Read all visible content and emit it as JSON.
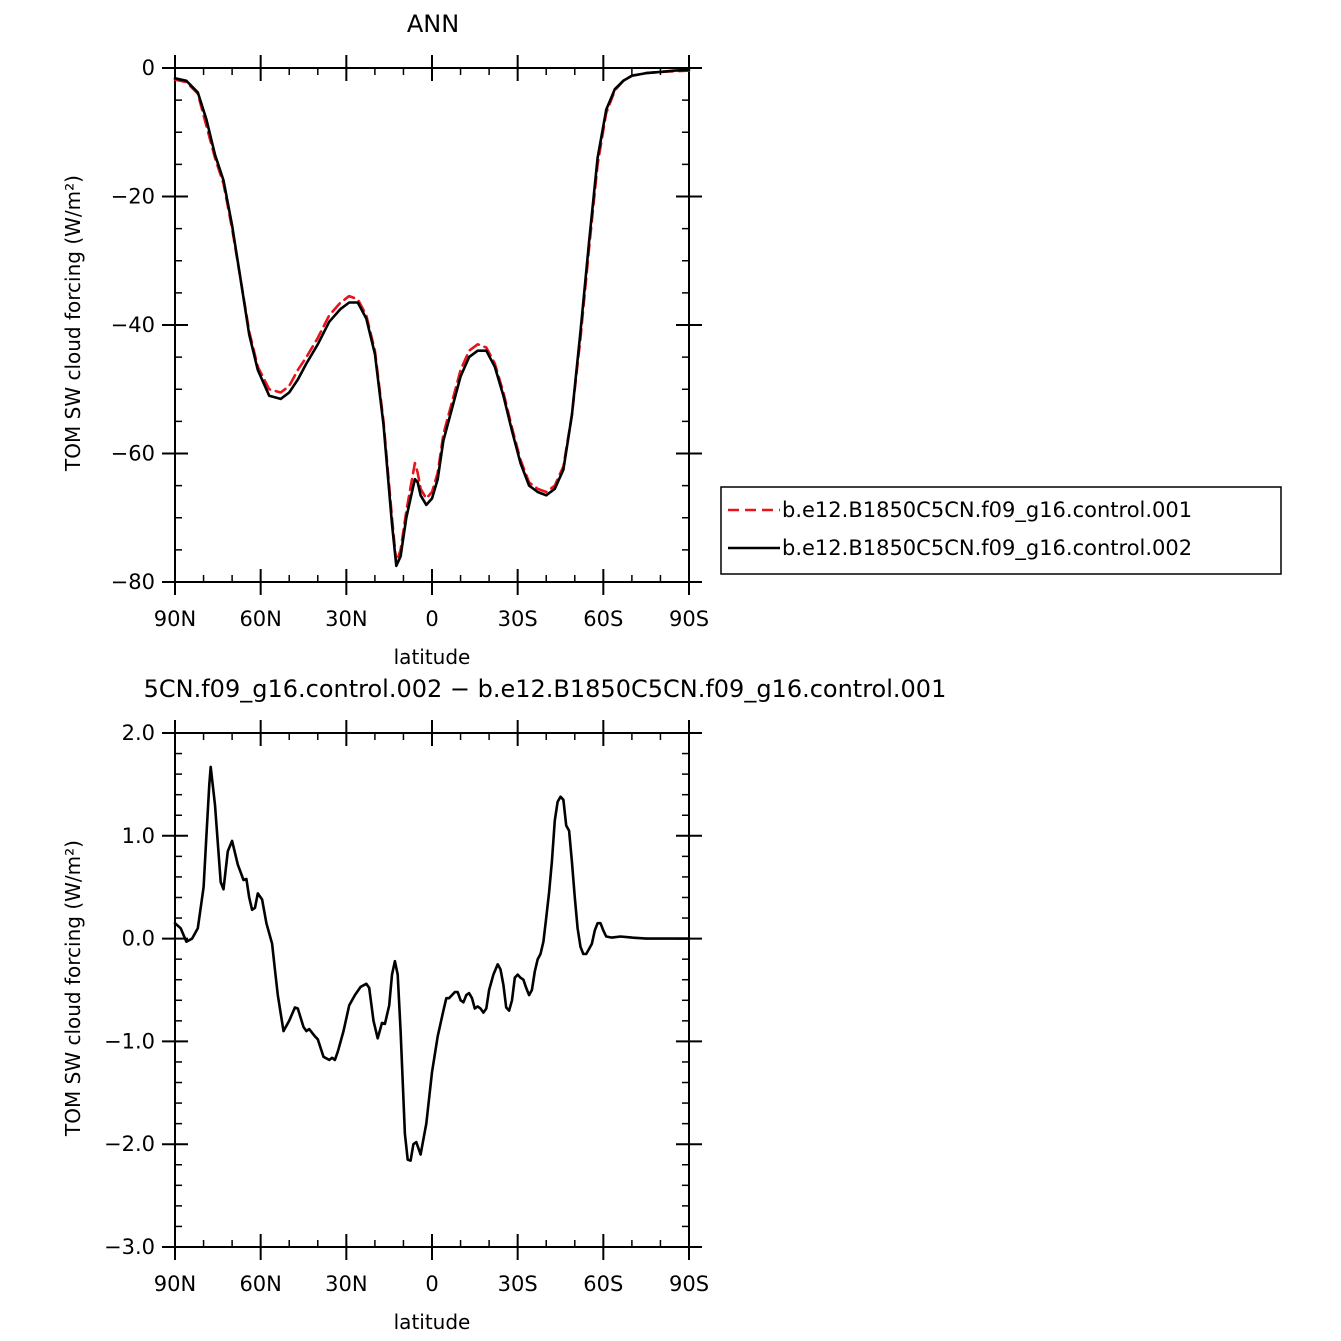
{
  "chart_data": [
    {
      "type": "line",
      "title": "ANN",
      "xlabel": "latitude",
      "ylabel": "TOM SW cloud forcing (W/m²)",
      "xlim": [
        90,
        -90
      ],
      "ylim": [
        -80,
        0
      ],
      "x_tick_values": [
        90,
        60,
        30,
        0,
        -30,
        -60,
        -90
      ],
      "x_ticks": [
        "90N",
        "60N",
        "30N",
        "0",
        "30S",
        "60S",
        "90S"
      ],
      "y_tick_values": [
        0,
        -20,
        -40,
        -60,
        -80
      ],
      "y_ticks": [
        "0",
        "−20",
        "−40",
        "−60",
        "−80"
      ],
      "legend_position": "right",
      "series": [
        {
          "name": "b.e12.B1850C5CN.f09_g16.control.001",
          "color": "#e8141b",
          "dash": "dashed",
          "points": [
            [
              90,
              -1.8
            ],
            [
              86,
              -2.2
            ],
            [
              82,
              -4
            ],
            [
              79,
              -9
            ],
            [
              76,
              -14
            ],
            [
              73,
              -18
            ],
            [
              70,
              -25
            ],
            [
              67,
              -33
            ],
            [
              64,
              -41
            ],
            [
              61,
              -46.5
            ],
            [
              57,
              -50
            ],
            [
              53,
              -50.5
            ],
            [
              50,
              -49.5
            ],
            [
              47,
              -47
            ],
            [
              44,
              -45
            ],
            [
              40,
              -42
            ],
            [
              36,
              -38.5
            ],
            [
              32,
              -36.5
            ],
            [
              29,
              -35.5
            ],
            [
              26,
              -36
            ],
            [
              23,
              -38.5
            ],
            [
              20,
              -44
            ],
            [
              17,
              -55
            ],
            [
              14,
              -70
            ],
            [
              12.5,
              -77
            ],
            [
              11,
              -75
            ],
            [
              9,
              -69
            ],
            [
              7,
              -64
            ],
            [
              6,
              -61.5
            ],
            [
              5,
              -63
            ],
            [
              4,
              -65.5
            ],
            [
              2,
              -67
            ],
            [
              0,
              -66
            ],
            [
              -2,
              -63
            ],
            [
              -4,
              -57
            ],
            [
              -7,
              -52
            ],
            [
              -10,
              -47
            ],
            [
              -13,
              -44
            ],
            [
              -16,
              -43
            ],
            [
              -19,
              -43.5
            ],
            [
              -22,
              -46
            ],
            [
              -25,
              -50.5
            ],
            [
              -28,
              -56
            ],
            [
              -31,
              -61
            ],
            [
              -34,
              -64.5
            ],
            [
              -37,
              -65.5
            ],
            [
              -40,
              -66
            ],
            [
              -43,
              -65
            ],
            [
              -46,
              -62
            ],
            [
              -49,
              -54
            ],
            [
              -52,
              -42
            ],
            [
              -55,
              -28
            ],
            [
              -58,
              -15
            ],
            [
              -61,
              -7
            ],
            [
              -64,
              -3.5
            ],
            [
              -67,
              -2
            ],
            [
              -70,
              -1.2
            ],
            [
              -75,
              -0.8
            ],
            [
              -80,
              -0.6
            ],
            [
              -85,
              -0.5
            ],
            [
              -90,
              -0.4
            ]
          ]
        },
        {
          "name": "b.e12.B1850C5CN.f09_g16.control.002",
          "color": "#000000",
          "dash": "solid",
          "points": [
            [
              90,
              -1.6
            ],
            [
              86,
              -2
            ],
            [
              82,
              -3.8
            ],
            [
              79,
              -8
            ],
            [
              76,
              -13.5
            ],
            [
              73,
              -17.5
            ],
            [
              70,
              -24.5
            ],
            [
              67,
              -33
            ],
            [
              64,
              -41.5
            ],
            [
              61,
              -47
            ],
            [
              57,
              -51
            ],
            [
              53,
              -51.5
            ],
            [
              50,
              -50.5
            ],
            [
              47,
              -48.5
            ],
            [
              44,
              -46
            ],
            [
              40,
              -43
            ],
            [
              36,
              -39.5
            ],
            [
              32,
              -37.5
            ],
            [
              29,
              -36.5
            ],
            [
              26,
              -36.5
            ],
            [
              23,
              -39
            ],
            [
              20,
              -44.5
            ],
            [
              17,
              -55.5
            ],
            [
              14,
              -71
            ],
            [
              12.5,
              -77.5
            ],
            [
              11,
              -76
            ],
            [
              9,
              -70
            ],
            [
              7,
              -66
            ],
            [
              6,
              -64
            ],
            [
              5,
              -64.5
            ],
            [
              4,
              -66.5
            ],
            [
              2,
              -68
            ],
            [
              0,
              -67
            ],
            [
              -2,
              -64
            ],
            [
              -4,
              -58
            ],
            [
              -7,
              -53
            ],
            [
              -10,
              -48
            ],
            [
              -13,
              -45
            ],
            [
              -16,
              -44
            ],
            [
              -19,
              -44
            ],
            [
              -22,
              -46.5
            ],
            [
              -25,
              -51
            ],
            [
              -28,
              -56.5
            ],
            [
              -31,
              -61.5
            ],
            [
              -34,
              -65
            ],
            [
              -37,
              -66
            ],
            [
              -40,
              -66.5
            ],
            [
              -43,
              -65.5
            ],
            [
              -46,
              -62.5
            ],
            [
              -49,
              -54
            ],
            [
              -52,
              -41
            ],
            [
              -55,
              -27
            ],
            [
              -58,
              -14
            ],
            [
              -61,
              -6.5
            ],
            [
              -64,
              -3.3
            ],
            [
              -67,
              -2
            ],
            [
              -70,
              -1.2
            ],
            [
              -75,
              -0.8
            ],
            [
              -80,
              -0.6
            ],
            [
              -85,
              -0.4
            ],
            [
              -90,
              -0.3
            ]
          ]
        }
      ]
    },
    {
      "type": "line",
      "title": "5CN.f09_g16.control.002 − b.e12.B1850C5CN.f09_g16.control.001",
      "xlabel": "latitude",
      "ylabel": "TOM SW cloud forcing (W/m²)",
      "xlim": [
        90,
        -90
      ],
      "ylim": [
        -3,
        2
      ],
      "x_tick_values": [
        90,
        60,
        30,
        0,
        -30,
        -60,
        -90
      ],
      "x_ticks": [
        "90N",
        "60N",
        "30N",
        "0",
        "30S",
        "60S",
        "90S"
      ],
      "y_tick_values": [
        2,
        1,
        0,
        -1,
        -2,
        -3
      ],
      "y_ticks": [
        "2.0",
        "1.0",
        "0.0",
        "−1.0",
        "−2.0",
        "−3.0"
      ],
      "series": [
        {
          "color": "#000000",
          "dash": "solid",
          "points": [
            [
              90,
              0.15
            ],
            [
              88,
              0.1
            ],
            [
              86,
              -0.03
            ],
            [
              84,
              0
            ],
            [
              82,
              0.1
            ],
            [
              80,
              0.5
            ],
            [
              79,
              1.0
            ],
            [
              78,
              1.5
            ],
            [
              77.5,
              1.67
            ],
            [
              76,
              1.3
            ],
            [
              74,
              0.55
            ],
            [
              73,
              0.48
            ],
            [
              71.5,
              0.85
            ],
            [
              70,
              0.95
            ],
            [
              68,
              0.72
            ],
            [
              66,
              0.57
            ],
            [
              65,
              0.58
            ],
            [
              64,
              0.4
            ],
            [
              63,
              0.28
            ],
            [
              62,
              0.3
            ],
            [
              61,
              0.44
            ],
            [
              59.5,
              0.38
            ],
            [
              58,
              0.15
            ],
            [
              56,
              -0.05
            ],
            [
              55,
              -0.3
            ],
            [
              54,
              -0.55
            ],
            [
              52,
              -0.9
            ],
            [
              50,
              -0.8
            ],
            [
              48,
              -0.67
            ],
            [
              47,
              -0.68
            ],
            [
              45,
              -0.86
            ],
            [
              44,
              -0.9
            ],
            [
              43,
              -0.88
            ],
            [
              41,
              -0.95
            ],
            [
              40,
              -0.98
            ],
            [
              38,
              -1.15
            ],
            [
              36,
              -1.18
            ],
            [
              35,
              -1.16
            ],
            [
              34,
              -1.18
            ],
            [
              33,
              -1.1
            ],
            [
              31,
              -0.9
            ],
            [
              29,
              -0.65
            ],
            [
              27,
              -0.55
            ],
            [
              25,
              -0.47
            ],
            [
              23,
              -0.44
            ],
            [
              22,
              -0.48
            ],
            [
              20.5,
              -0.8
            ],
            [
              19,
              -0.97
            ],
            [
              17.5,
              -0.82
            ],
            [
              16.5,
              -0.83
            ],
            [
              15,
              -0.65
            ],
            [
              14,
              -0.35
            ],
            [
              13,
              -0.22
            ],
            [
              12,
              -0.35
            ],
            [
              11,
              -0.9
            ],
            [
              9.5,
              -1.9
            ],
            [
              8.5,
              -2.15
            ],
            [
              7.5,
              -2.16
            ],
            [
              6.5,
              -2.0
            ],
            [
              5.5,
              -1.98
            ],
            [
              4,
              -2.1
            ],
            [
              2,
              -1.8
            ],
            [
              0,
              -1.3
            ],
            [
              -2,
              -0.95
            ],
            [
              -4,
              -0.7
            ],
            [
              -5,
              -0.58
            ],
            [
              -6,
              -0.58
            ],
            [
              -8,
              -0.52
            ],
            [
              -9,
              -0.52
            ],
            [
              -10,
              -0.6
            ],
            [
              -11,
              -0.62
            ],
            [
              -12,
              -0.55
            ],
            [
              -13,
              -0.53
            ],
            [
              -14,
              -0.58
            ],
            [
              -15,
              -0.68
            ],
            [
              -16,
              -0.66
            ],
            [
              -17,
              -0.68
            ],
            [
              -18,
              -0.72
            ],
            [
              -19,
              -0.68
            ],
            [
              -20,
              -0.5
            ],
            [
              -21.5,
              -0.35
            ],
            [
              -23,
              -0.25
            ],
            [
              -24,
              -0.3
            ],
            [
              -25,
              -0.45
            ],
            [
              -26,
              -0.67
            ],
            [
              -27,
              -0.7
            ],
            [
              -28,
              -0.6
            ],
            [
              -29,
              -0.38
            ],
            [
              -30,
              -0.35
            ],
            [
              -31,
              -0.38
            ],
            [
              -32,
              -0.4
            ],
            [
              -33,
              -0.48
            ],
            [
              -34,
              -0.55
            ],
            [
              -35,
              -0.5
            ],
            [
              -36,
              -0.32
            ],
            [
              -37,
              -0.2
            ],
            [
              -38,
              -0.15
            ],
            [
              -39,
              -0.03
            ],
            [
              -40,
              0.2
            ],
            [
              -41,
              0.45
            ],
            [
              -42,
              0.75
            ],
            [
              -43,
              1.15
            ],
            [
              -44,
              1.33
            ],
            [
              -45,
              1.38
            ],
            [
              -46,
              1.35
            ],
            [
              -47,
              1.1
            ],
            [
              -48,
              1.05
            ],
            [
              -49,
              0.75
            ],
            [
              -50,
              0.4
            ],
            [
              -51,
              0.1
            ],
            [
              -52,
              -0.08
            ],
            [
              -53,
              -0.15
            ],
            [
              -54,
              -0.15
            ],
            [
              -55,
              -0.1
            ],
            [
              -56,
              -0.05
            ],
            [
              -57,
              0.08
            ],
            [
              -58,
              0.15
            ],
            [
              -59,
              0.15
            ],
            [
              -60,
              0.08
            ],
            [
              -61,
              0.02
            ],
            [
              -63,
              0.01
            ],
            [
              -66,
              0.02
            ],
            [
              -70,
              0.01
            ],
            [
              -75,
              0.0
            ],
            [
              -80,
              0.0
            ],
            [
              -85,
              0.0
            ],
            [
              -90,
              0.0
            ]
          ]
        }
      ]
    }
  ]
}
